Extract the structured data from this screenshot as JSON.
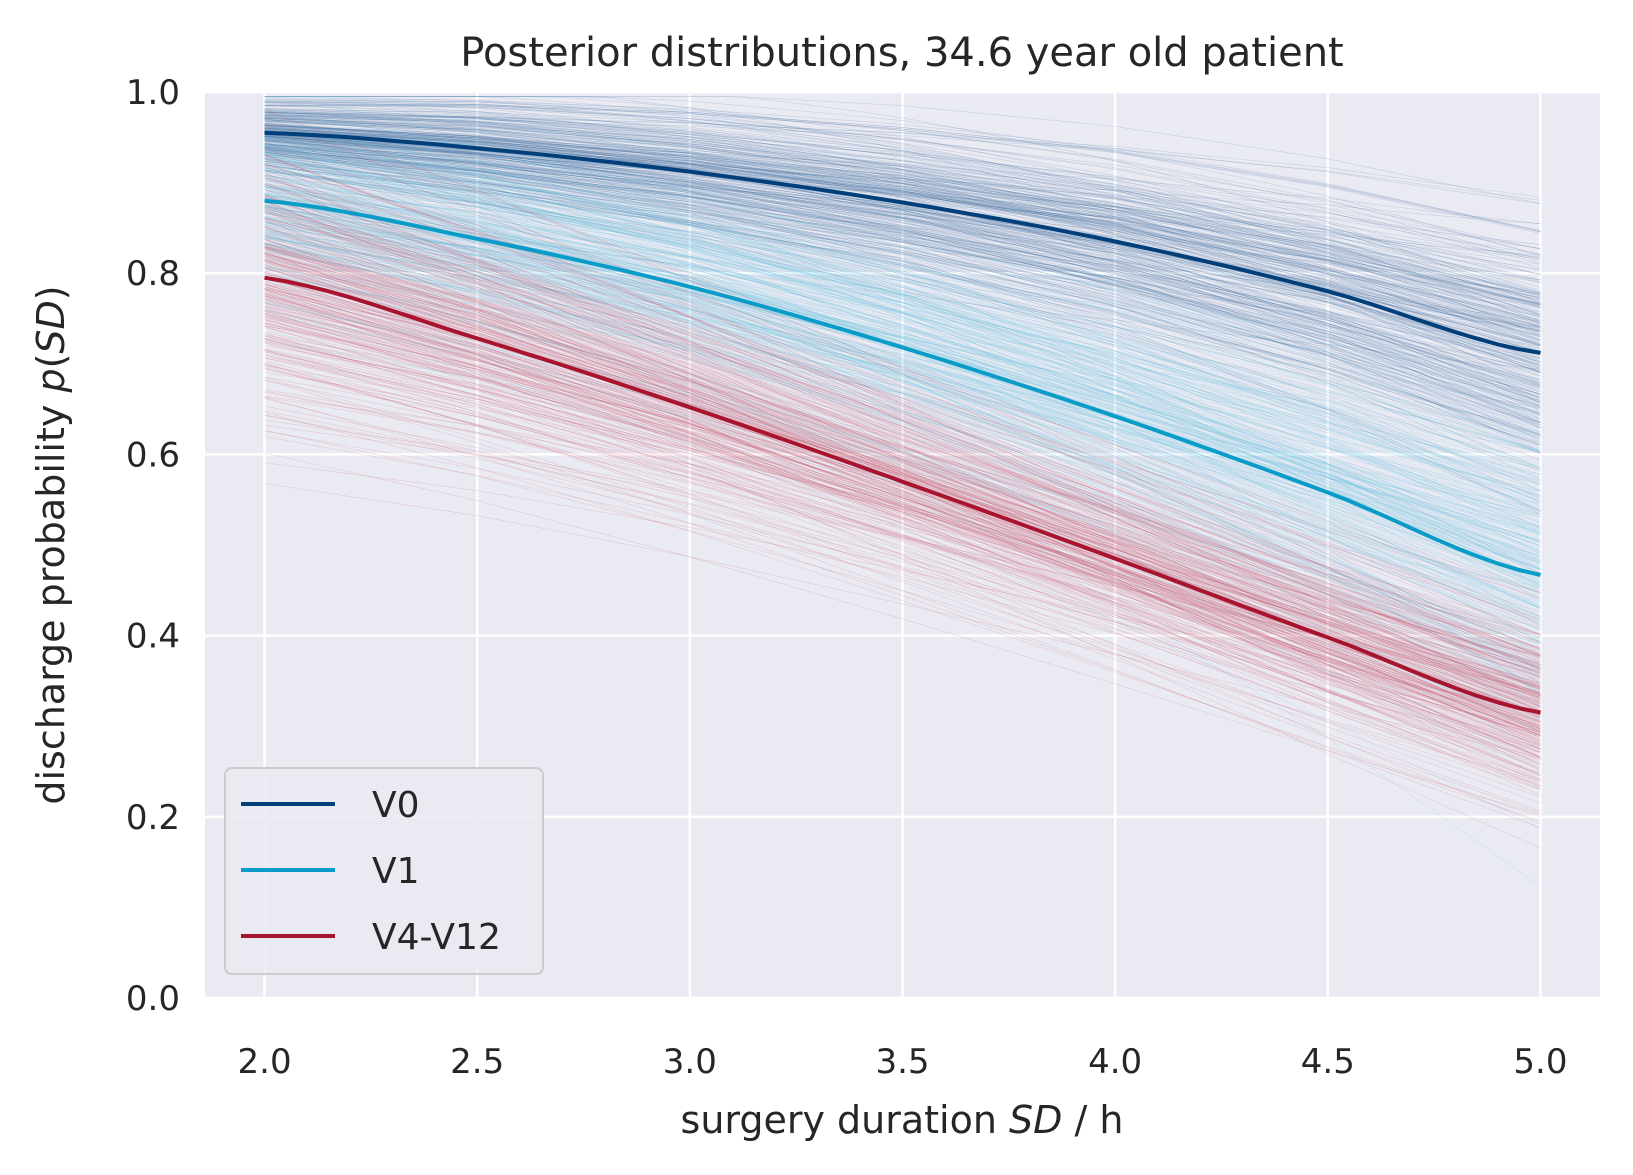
{
  "chart_data": {
    "type": "line",
    "title": "Posterior distributions, 34.6 year old patient",
    "xlabel": "surgery duration SD / h",
    "ylabel": "discharge probability p(SD)",
    "xlabel_parts": {
      "before": "surgery duration ",
      "italic": "SD",
      "after": " / h"
    },
    "ylabel_parts": {
      "before": "discharge probability ",
      "italic_p": "p",
      "open": "(",
      "italic_sd": "SD",
      "close": ")"
    },
    "xlim": [
      1.86,
      5.14
    ],
    "ylim": [
      0.0,
      1.0
    ],
    "x_ticks": [
      "2.0",
      "2.5",
      "3.0",
      "3.5",
      "4.0",
      "4.5",
      "5.0"
    ],
    "y_ticks": [
      "0.0",
      "0.2",
      "0.4",
      "0.6",
      "0.8",
      "1.0"
    ],
    "grid": true,
    "legend_position": "lower-left",
    "x": [
      2.0,
      2.5,
      3.0,
      3.5,
      4.0,
      4.5,
      5.0
    ],
    "series": [
      {
        "name": "V0",
        "color": "#003f7a",
        "values": [
          0.955,
          0.938,
          0.912,
          0.878,
          0.835,
          0.78,
          0.712
        ]
      },
      {
        "name": "V1",
        "color": "#0a9cc9",
        "values": [
          0.88,
          0.838,
          0.785,
          0.718,
          0.642,
          0.558,
          0.467
        ]
      },
      {
        "name": "V4-V12",
        "color": "#a8142e",
        "values": [
          0.795,
          0.728,
          0.652,
          0.57,
          0.485,
          0.398,
          0.315
        ]
      }
    ],
    "posterior_samples": {
      "per_series": 300,
      "colors": [
        "#3f6f9e",
        "#5cc0dd",
        "#c8506b"
      ],
      "spread_start": [
        0.017,
        0.045,
        0.065
      ],
      "spread_end": [
        0.075,
        0.095,
        0.06
      ]
    }
  }
}
